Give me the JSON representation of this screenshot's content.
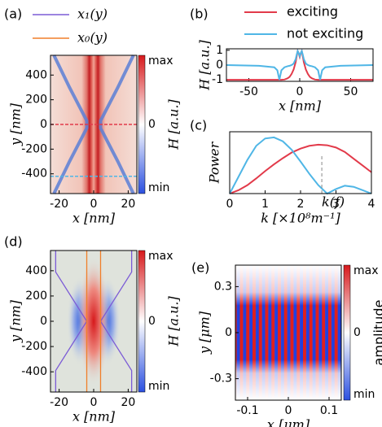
{
  "chart_data": [
    {
      "type": "heatmap",
      "label": "(a)",
      "xlabel": "x [nm]",
      "ylabel": "y [nm]",
      "xlim": [
        -25,
        25
      ],
      "ylim": [
        -560,
        560
      ],
      "xticks": [
        -20,
        0,
        20
      ],
      "yticks": [
        -400,
        -200,
        0,
        200,
        400
      ],
      "colorbar": {
        "label": "H [a.u.]",
        "ticks": [
          "max",
          "0",
          "min"
        ]
      },
      "legend": [
        {
          "name": "x₁(y)",
          "color": "#7b5bd6"
        },
        {
          "name": "x₀(y)",
          "color": "#f07f2a"
        }
      ]
    },
    {
      "type": "line",
      "label": "(b)",
      "xlabel": "x [nm]",
      "ylabel": "H [a.u.]",
      "xlim": [
        -72,
        72
      ],
      "ylim": [
        -1.1,
        1.1
      ],
      "xticks": [
        -50,
        0,
        50
      ],
      "yticks": [
        -1,
        0,
        1
      ],
      "x": [
        -72,
        -40,
        -25,
        -22,
        -20,
        -18,
        -15,
        -12,
        -10,
        -8,
        -6,
        -4,
        -3,
        -2,
        -1,
        0,
        1,
        2,
        3,
        4,
        6,
        8,
        10,
        12,
        15,
        18,
        20,
        22,
        25,
        40,
        72
      ],
      "series": [
        {
          "name": "exciting",
          "color": "#e23a4a",
          "values": [
            -1,
            -1,
            -1,
            -1,
            -1,
            -1,
            -0.98,
            -0.9,
            -0.8,
            -0.6,
            -0.3,
            0.2,
            0.6,
            0.95,
            0.8,
            0.55,
            0.8,
            0.95,
            0.6,
            0.2,
            -0.3,
            -0.6,
            -0.8,
            -0.9,
            -0.98,
            -1,
            -1,
            -1,
            -1,
            -1,
            -1
          ]
        },
        {
          "name": "not exciting",
          "color": "#4fb6e6",
          "values": [
            0,
            -0.05,
            -0.15,
            -0.35,
            -1,
            -0.35,
            -0.15,
            -0.08,
            -0.05,
            0,
            0.1,
            0.4,
            0.7,
            0.95,
            0.8,
            0.6,
            0.8,
            0.95,
            0.7,
            0.4,
            0.1,
            0,
            -0.05,
            -0.08,
            -0.15,
            -0.35,
            -1,
            -0.35,
            -0.15,
            -0.05,
            0
          ]
        }
      ]
    },
    {
      "type": "line",
      "label": "(c)",
      "xlabel": "k [×10⁸m⁻¹]",
      "ylabel": "Power",
      "xlim": [
        0,
        4
      ],
      "ylim": [
        0,
        1.1
      ],
      "xticks": [
        0,
        1,
        2,
        3,
        4
      ],
      "x": [
        0,
        0.25,
        0.5,
        0.75,
        1,
        1.25,
        1.5,
        1.75,
        2,
        2.25,
        2.5,
        2.75,
        3,
        3.25,
        3.5,
        3.75,
        4
      ],
      "series": [
        {
          "name": "exciting",
          "color": "#e23a4a",
          "values": [
            0,
            0.06,
            0.15,
            0.27,
            0.4,
            0.52,
            0.63,
            0.73,
            0.8,
            0.85,
            0.87,
            0.86,
            0.82,
            0.74,
            0.62,
            0.5,
            0.38
          ]
        },
        {
          "name": "not exciting",
          "color": "#4fb6e6",
          "values": [
            0,
            0.3,
            0.6,
            0.85,
            0.98,
            1.0,
            0.93,
            0.78,
            0.57,
            0.35,
            0.15,
            0,
            0.08,
            0.14,
            0.12,
            0.06,
            0
          ]
        }
      ],
      "annotation": {
        "text": "k(f)",
        "x": 2.6
      }
    },
    {
      "type": "heatmap",
      "label": "(d)",
      "xlabel": "x [nm]",
      "ylabel": "y [nm]",
      "xlim": [
        -25,
        25
      ],
      "ylim": [
        -560,
        560
      ],
      "xticks": [
        -20,
        0,
        20
      ],
      "yticks": [
        -400,
        -200,
        0,
        200,
        400
      ],
      "colorbar": {
        "label": "H [a.u.]",
        "ticks": [
          "max",
          "0",
          "min"
        ]
      },
      "series": [
        {
          "color": "#7b5bd6",
          "x": [
            -22,
            -22,
            -4,
            -22,
            -22
          ],
          "y": [
            560,
            390,
            0,
            -390,
            -560
          ]
        },
        {
          "color": "#7b5bd6",
          "x": [
            22,
            22,
            4,
            22,
            22
          ],
          "y": [
            560,
            390,
            0,
            -390,
            -560
          ]
        },
        {
          "color": "#f07f2a",
          "x": [
            -4,
            -4
          ],
          "y": [
            560,
            -560
          ]
        },
        {
          "color": "#f07f2a",
          "x": [
            4,
            4
          ],
          "y": [
            560,
            -560
          ]
        }
      ]
    },
    {
      "type": "heatmap",
      "label": "(e)",
      "xlabel": "x [μm]",
      "ylabel": "y [μm]",
      "xlim": [
        -0.13,
        0.13
      ],
      "ylim": [
        -0.44,
        0.44
      ],
      "xticks": [
        -0.1,
        0,
        0.1
      ],
      "yticks": [
        -0.3,
        0,
        0.3
      ],
      "colorbar": {
        "label": "amplitude",
        "ticks": [
          "max",
          "0",
          "min"
        ]
      }
    }
  ]
}
